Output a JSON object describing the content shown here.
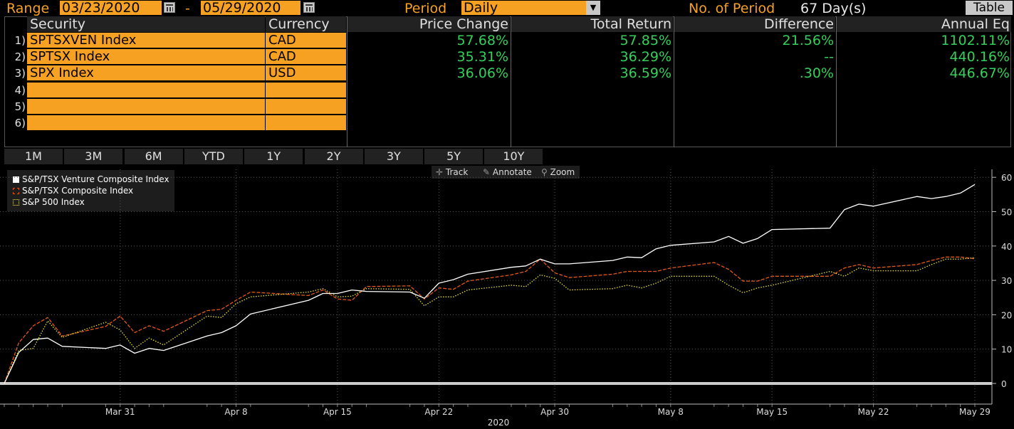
{
  "range": {
    "label": "Range",
    "start": "03/23/2020",
    "dash": "-",
    "end": "05/29/2020"
  },
  "period": {
    "label": "Period",
    "value": "Daily"
  },
  "num_period": {
    "label": "No. of Period",
    "value": "67 Day(s)"
  },
  "view_button": "Table",
  "table": {
    "headers": [
      "Security",
      "Currency",
      "Price Change",
      "Total Return",
      "Difference",
      "Annual Eq"
    ],
    "rows": [
      {
        "n": "1)",
        "security": "SPTSXVEN Index",
        "currency": "CAD",
        "price": "57.68%",
        "total": "57.85%",
        "diff": "21.56%",
        "annual": "1102.11%"
      },
      {
        "n": "2)",
        "security": "SPTSX Index",
        "currency": "CAD",
        "price": "35.31%",
        "total": "36.29%",
        "diff": "--",
        "annual": "440.16%"
      },
      {
        "n": "3)",
        "security": "SPX Index",
        "currency": "USD",
        "price": "36.06%",
        "total": "36.59%",
        "diff": ".30%",
        "annual": "446.67%"
      },
      {
        "n": "4)",
        "security": "",
        "currency": "",
        "price": "",
        "total": "",
        "diff": "",
        "annual": ""
      },
      {
        "n": "5)",
        "security": "",
        "currency": "",
        "price": "",
        "total": "",
        "diff": "",
        "annual": ""
      },
      {
        "n": "6)",
        "security": "",
        "currency": "",
        "price": "",
        "total": "",
        "diff": "",
        "annual": ""
      }
    ]
  },
  "tabs": [
    "1M",
    "3M",
    "6M",
    "YTD",
    "1Y",
    "2Y",
    "3Y",
    "5Y",
    "10Y"
  ],
  "tools": [
    {
      "icon": "crosshair-icon",
      "label": "Track"
    },
    {
      "icon": "pencil-icon",
      "label": "Annotate"
    },
    {
      "icon": "magnifier-icon",
      "label": "Zoom"
    }
  ],
  "colors": {
    "orange": "#f7a122",
    "green": "#33d05a",
    "venture": "#ffffff",
    "composite": "#e0591b",
    "sp500": "#e8e02a"
  },
  "chart_data": {
    "type": "line",
    "xlabel": "2020",
    "x_ticks": [
      "Mar 31",
      "Apr 8",
      "Apr 15",
      "Apr 22",
      "Apr 30",
      "May 8",
      "May 15",
      "May 22",
      "May 29"
    ],
    "ylim": [
      0,
      62
    ],
    "y_ticks": [
      0,
      10,
      20,
      30,
      40,
      50,
      60
    ],
    "x": [
      "2020-03-23",
      "2020-03-24",
      "2020-03-25",
      "2020-03-26",
      "2020-03-27",
      "2020-03-30",
      "2020-03-31",
      "2020-04-01",
      "2020-04-02",
      "2020-04-03",
      "2020-04-06",
      "2020-04-07",
      "2020-04-08",
      "2020-04-09",
      "2020-04-13",
      "2020-04-14",
      "2020-04-15",
      "2020-04-16",
      "2020-04-17",
      "2020-04-20",
      "2020-04-21",
      "2020-04-22",
      "2020-04-23",
      "2020-04-24",
      "2020-04-27",
      "2020-04-28",
      "2020-04-29",
      "2020-04-30",
      "2020-05-01",
      "2020-05-04",
      "2020-05-05",
      "2020-05-06",
      "2020-05-07",
      "2020-05-08",
      "2020-05-11",
      "2020-05-12",
      "2020-05-13",
      "2020-05-14",
      "2020-05-15",
      "2020-05-19",
      "2020-05-20",
      "2020-05-21",
      "2020-05-22",
      "2020-05-25",
      "2020-05-26",
      "2020-05-27",
      "2020-05-28",
      "2020-05-29"
    ],
    "series": [
      {
        "name": "S&P/TSX Venture Composite Index",
        "style": "solid",
        "values": [
          0,
          9,
          12.8,
          13.2,
          10.8,
          10.2,
          11.2,
          8.8,
          10.2,
          9.6,
          13.8,
          14.8,
          16.8,
          20.2,
          24.2,
          26.2,
          26.2,
          27.2,
          26.8,
          26.6,
          24.8,
          29.2,
          30.2,
          31.8,
          33.8,
          34.2,
          36.2,
          34.8,
          34.8,
          35.8,
          36.8,
          36.6,
          39.2,
          40.2,
          41.2,
          42.8,
          40.8,
          42.2,
          44.8,
          45.2,
          50.6,
          52.2,
          51.6,
          54.4,
          53.8,
          54.4,
          55.4,
          57.9
        ]
      },
      {
        "name": "S&P/TSX Composite Index",
        "style": "dashed",
        "values": [
          0,
          11.8,
          16.8,
          19.2,
          13.8,
          16.6,
          19.6,
          14.8,
          16.8,
          15.2,
          21.2,
          21.6,
          24.2,
          26.6,
          25.6,
          27.2,
          24.6,
          24.2,
          28.2,
          28.4,
          24.6,
          27.8,
          27.4,
          29.8,
          31.6,
          32.6,
          36.2,
          32.2,
          30.8,
          31.8,
          32.6,
          32.6,
          32.6,
          33.6,
          35.2,
          33.2,
          29.8,
          29.8,
          31.2,
          31.2,
          33.6,
          34.6,
          33.6,
          34.6,
          35.8,
          36.8,
          36.8,
          36.3
        ]
      },
      {
        "name": "S&P 500 Index",
        "style": "dotted",
        "values": [
          0,
          9.6,
          10.2,
          18.2,
          13.4,
          17.8,
          15.6,
          10.2,
          13.2,
          11.2,
          19.6,
          19.2,
          23.2,
          25.2,
          26.6,
          27.6,
          25.2,
          25.4,
          27.6,
          27.4,
          22.6,
          25.2,
          25.2,
          27.2,
          28.6,
          28.2,
          31.6,
          30.6,
          27.2,
          27.6,
          28.6,
          27.8,
          29.2,
          31.2,
          31.2,
          28.6,
          26.4,
          27.8,
          28.6,
          32.6,
          31.2,
          33.6,
          32.8,
          32.8,
          34.6,
          36.2,
          36.2,
          36.6
        ]
      }
    ]
  }
}
